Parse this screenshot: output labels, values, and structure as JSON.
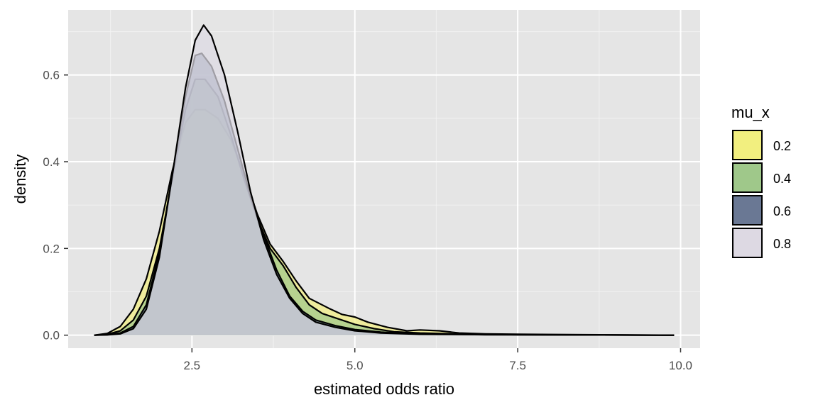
{
  "chart_data": {
    "type": "area",
    "subtype": "overlapping density curves",
    "title": "",
    "xlabel": "estimated odds ratio",
    "ylabel": "density",
    "xlim": [
      0.6,
      10.3
    ],
    "ylim": [
      -0.03,
      0.75
    ],
    "x_ticks": [
      2.5,
      5.0,
      7.5,
      10.0
    ],
    "x_tick_labels": [
      "2.5",
      "5.0",
      "7.5",
      "10.0"
    ],
    "y_ticks": [
      0.0,
      0.2,
      0.4,
      0.6
    ],
    "y_tick_labels": [
      "0.0",
      "0.2",
      "0.4",
      "0.6"
    ],
    "panel_background": "#e5e5e5",
    "grid": true,
    "legend": {
      "title": "mu_x",
      "placement": "right",
      "entries": [
        {
          "label": "0.2",
          "color": "#f2ef7f"
        },
        {
          "label": "0.4",
          "color": "#9fc88a"
        },
        {
          "label": "0.6",
          "color": "#6a7894"
        },
        {
          "label": "0.8",
          "color": "#ddd9e3"
        }
      ]
    },
    "series": [
      {
        "name": "0.2",
        "fill": "#f2ef7f",
        "points": [
          [
            1.0,
            0.0
          ],
          [
            1.2,
            0.004
          ],
          [
            1.4,
            0.02
          ],
          [
            1.6,
            0.06
          ],
          [
            1.8,
            0.13
          ],
          [
            2.0,
            0.24
          ],
          [
            2.2,
            0.38
          ],
          [
            2.4,
            0.49
          ],
          [
            2.55,
            0.52
          ],
          [
            2.7,
            0.52
          ],
          [
            2.9,
            0.5
          ],
          [
            3.1,
            0.45
          ],
          [
            3.3,
            0.37
          ],
          [
            3.5,
            0.28
          ],
          [
            3.7,
            0.21
          ],
          [
            3.9,
            0.17
          ],
          [
            4.1,
            0.125
          ],
          [
            4.3,
            0.085
          ],
          [
            4.6,
            0.062
          ],
          [
            4.8,
            0.048
          ],
          [
            5.0,
            0.042
          ],
          [
            5.2,
            0.03
          ],
          [
            5.5,
            0.018
          ],
          [
            5.8,
            0.01
          ],
          [
            6.0,
            0.012
          ],
          [
            6.3,
            0.01
          ],
          [
            6.6,
            0.005
          ],
          [
            7.0,
            0.003
          ],
          [
            7.5,
            0.002
          ],
          [
            8.5,
            0.001
          ],
          [
            9.9,
            0.0
          ]
        ]
      },
      {
        "name": "0.4",
        "fill": "#9fc88a",
        "points": [
          [
            1.0,
            0.0
          ],
          [
            1.2,
            0.002
          ],
          [
            1.4,
            0.01
          ],
          [
            1.6,
            0.035
          ],
          [
            1.8,
            0.09
          ],
          [
            2.0,
            0.2
          ],
          [
            2.2,
            0.36
          ],
          [
            2.4,
            0.52
          ],
          [
            2.55,
            0.59
          ],
          [
            2.7,
            0.59
          ],
          [
            2.9,
            0.55
          ],
          [
            3.1,
            0.46
          ],
          [
            3.3,
            0.36
          ],
          [
            3.5,
            0.27
          ],
          [
            3.7,
            0.2
          ],
          [
            3.9,
            0.16
          ],
          [
            4.1,
            0.11
          ],
          [
            4.3,
            0.07
          ],
          [
            4.5,
            0.05
          ],
          [
            4.8,
            0.035
          ],
          [
            5.0,
            0.025
          ],
          [
            5.3,
            0.015
          ],
          [
            5.6,
            0.008
          ],
          [
            6.0,
            0.005
          ],
          [
            6.5,
            0.003
          ],
          [
            7.5,
            0.001
          ],
          [
            9.9,
            0.0
          ]
        ]
      },
      {
        "name": "0.6",
        "fill": "#6a7894",
        "points": [
          [
            1.0,
            0.0
          ],
          [
            1.2,
            0.001
          ],
          [
            1.4,
            0.005
          ],
          [
            1.6,
            0.02
          ],
          [
            1.8,
            0.07
          ],
          [
            2.0,
            0.19
          ],
          [
            2.2,
            0.37
          ],
          [
            2.4,
            0.55
          ],
          [
            2.55,
            0.645
          ],
          [
            2.65,
            0.65
          ],
          [
            2.8,
            0.62
          ],
          [
            3.0,
            0.54
          ],
          [
            3.2,
            0.43
          ],
          [
            3.4,
            0.32
          ],
          [
            3.6,
            0.23
          ],
          [
            3.8,
            0.15
          ],
          [
            4.0,
            0.09
          ],
          [
            4.2,
            0.055
          ],
          [
            4.4,
            0.035
          ],
          [
            4.7,
            0.022
          ],
          [
            5.0,
            0.013
          ],
          [
            5.4,
            0.007
          ],
          [
            6.0,
            0.003
          ],
          [
            7.0,
            0.001
          ],
          [
            9.9,
            0.0
          ]
        ]
      },
      {
        "name": "0.8",
        "fill": "#ddd9e3",
        "points": [
          [
            1.0,
            0.0
          ],
          [
            1.2,
            0.0005
          ],
          [
            1.4,
            0.003
          ],
          [
            1.6,
            0.015
          ],
          [
            1.8,
            0.06
          ],
          [
            2.0,
            0.18
          ],
          [
            2.2,
            0.37
          ],
          [
            2.4,
            0.57
          ],
          [
            2.55,
            0.68
          ],
          [
            2.68,
            0.715
          ],
          [
            2.8,
            0.69
          ],
          [
            3.0,
            0.6
          ],
          [
            3.2,
            0.47
          ],
          [
            3.4,
            0.33
          ],
          [
            3.6,
            0.22
          ],
          [
            3.8,
            0.14
          ],
          [
            4.0,
            0.085
          ],
          [
            4.2,
            0.05
          ],
          [
            4.4,
            0.03
          ],
          [
            4.7,
            0.018
          ],
          [
            5.0,
            0.01
          ],
          [
            5.4,
            0.005
          ],
          [
            6.0,
            0.002
          ],
          [
            7.0,
            0.001
          ],
          [
            9.9,
            0.0
          ]
        ]
      }
    ]
  }
}
